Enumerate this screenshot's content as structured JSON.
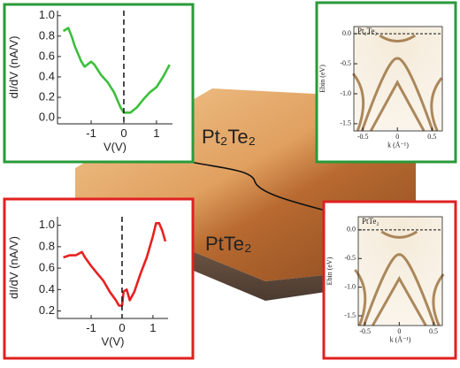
{
  "chart_data": [
    {
      "type": "line",
      "xlabel": "V(V)",
      "ylabel": "dI/dV (nA/V)",
      "x": [
        -1.85,
        -1.7,
        -1.6,
        -1.5,
        -1.3,
        -1.2,
        -1.0,
        -0.9,
        -0.7,
        -0.5,
        -0.3,
        -0.1,
        0.0,
        0.2,
        0.4,
        0.6,
        0.8,
        1.0,
        1.2,
        1.4
      ],
      "series": [
        {
          "color": "#3cbf3c",
          "values": [
            0.85,
            0.88,
            0.8,
            0.7,
            0.55,
            0.5,
            0.55,
            0.52,
            0.42,
            0.35,
            0.25,
            0.1,
            0.05,
            0.05,
            0.1,
            0.18,
            0.25,
            0.3,
            0.4,
            0.52
          ]
        }
      ],
      "xlim": [
        -2.03,
        1.49
      ],
      "ylim": [
        -0.06,
        1.05
      ],
      "xticks": [
        -1,
        0,
        1
      ],
      "yticks": [
        {
          "value": 0,
          "label": "0.0"
        },
        {
          "value": 0.2,
          "label": "0.2"
        },
        {
          "value": 0.4,
          "label": "0.4"
        },
        {
          "value": 0.6,
          "label": "0.6"
        },
        {
          "value": 0.8,
          "label": "0.8"
        },
        {
          "value": 1,
          "label": "1.0"
        }
      ],
      "vline": 0,
      "frame_color": "#2a9a3a"
    },
    {
      "type": "line",
      "xlabel": "V(V)",
      "ylabel": "dI/dV (nA/V)",
      "x": [
        -1.9,
        -1.7,
        -1.5,
        -1.3,
        -1.2,
        -1.0,
        -0.8,
        -0.6,
        -0.4,
        -0.2,
        -0.1,
        0.0,
        0.05,
        0.15,
        0.25,
        0.4,
        0.6,
        0.8,
        1.0,
        1.1,
        1.2,
        1.3,
        1.4
      ],
      "series": [
        {
          "color": "#e82020",
          "values": [
            0.7,
            0.72,
            0.72,
            0.75,
            0.7,
            0.62,
            0.55,
            0.48,
            0.38,
            0.3,
            0.25,
            0.25,
            0.38,
            0.4,
            0.3,
            0.38,
            0.55,
            0.7,
            0.9,
            1.02,
            1.02,
            0.95,
            0.85
          ]
        }
      ],
      "xlim": [
        -2.09,
        1.49
      ],
      "ylim": [
        0.13,
        1.08
      ],
      "xticks": [
        -1,
        0,
        1
      ],
      "yticks": [
        {
          "value": 0.2,
          "label": "0.2"
        },
        {
          "value": 0.4,
          "label": "0.4"
        },
        {
          "value": 0.6,
          "label": "0.6"
        },
        {
          "value": 0.8,
          "label": "0.8"
        },
        {
          "value": 1,
          "label": "1.0"
        }
      ],
      "vline": 0,
      "frame_color": "#e02020"
    },
    {
      "type": "image",
      "title": "Pt₂Te₂",
      "title_color": "#3cbf3c",
      "xlabel": "k (Å⁻¹)",
      "ylabel": "Ebin (eV)",
      "xlim": [
        -0.63,
        0.65
      ],
      "ylim": [
        -1.62,
        0.12
      ],
      "xticks": [
        -0.5,
        0,
        0.5
      ],
      "yticks": [
        {
          "value": 0,
          "label": "0.0"
        },
        {
          "value": -0.5,
          "label": "-0.5"
        },
        {
          "value": -1,
          "label": "-1.0"
        },
        {
          "value": -1.5,
          "label": "-1.5"
        }
      ],
      "hline": 0,
      "frame_color": "#2a9a3a"
    },
    {
      "type": "image",
      "title": "PtTe₂",
      "title_color": "#e82020",
      "xlabel": "k (Å⁻¹)",
      "ylabel": "Ebin (eV)",
      "xlim": [
        -0.6,
        0.63
      ],
      "ylim": [
        -1.67,
        0.23
      ],
      "xticks": [
        -0.5,
        0,
        0.5
      ],
      "yticks": [
        {
          "value": 0,
          "label": "0.0"
        },
        {
          "value": -0.5,
          "label": "-0.5"
        },
        {
          "value": -1,
          "label": "-1.0"
        },
        {
          "value": -1.5,
          "label": "-1.5"
        }
      ],
      "hline": 0,
      "frame_color": "#e02020"
    }
  ],
  "surface_labels": [
    {
      "text": "Pt₂Te₂",
      "color": "#3cbf3c"
    },
    {
      "text": "PtTe₂",
      "color": "#e82020"
    }
  ]
}
